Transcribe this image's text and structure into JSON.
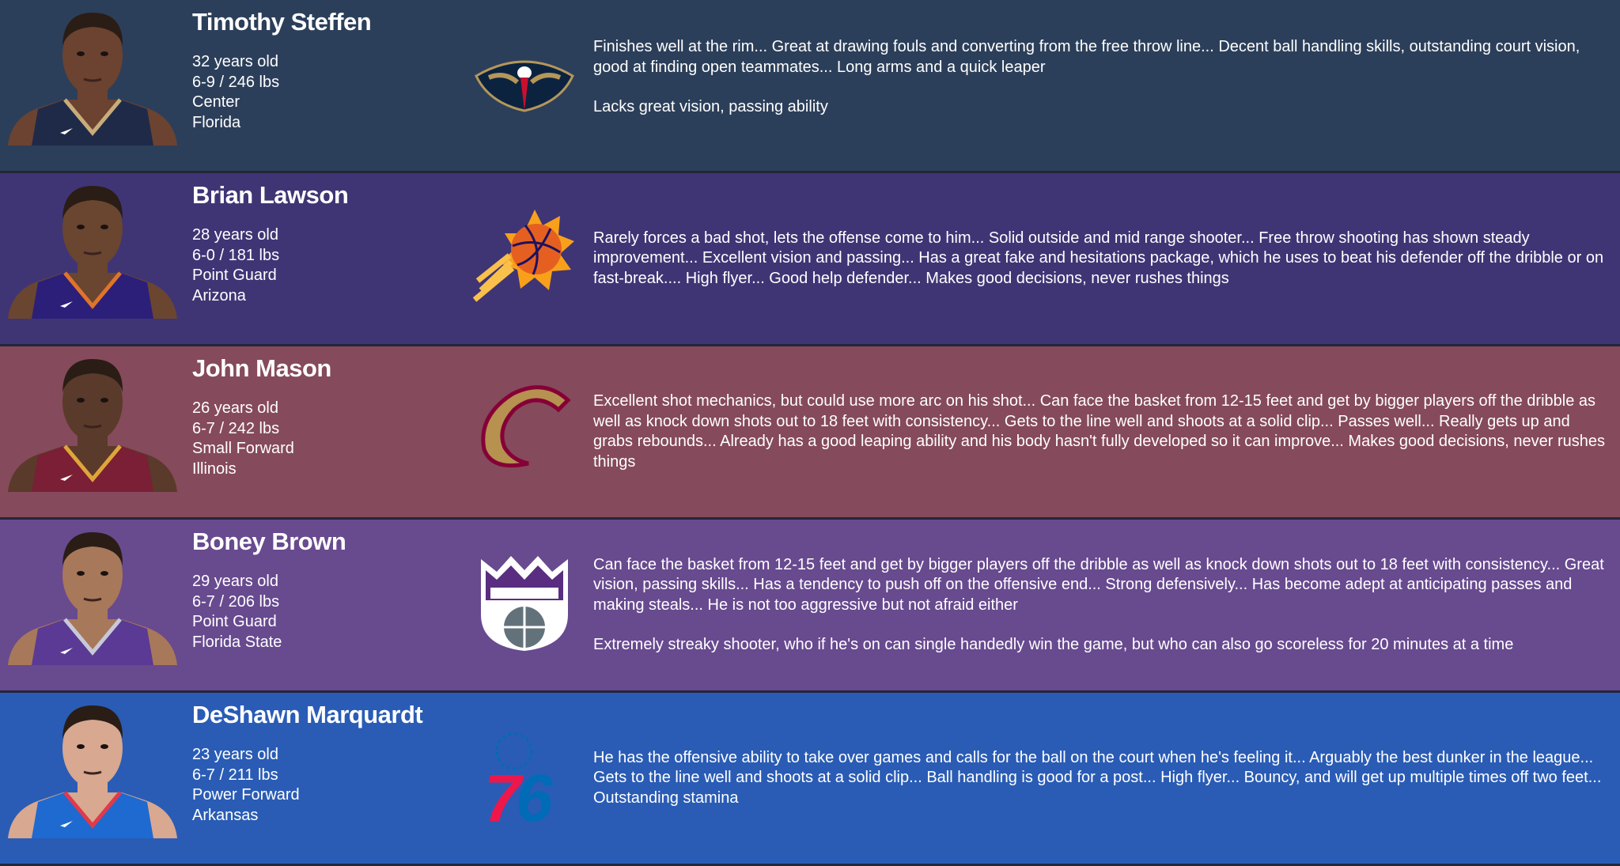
{
  "players": [
    {
      "name": "Timothy Steffen",
      "age": "32 years old",
      "size": "6-9 / 246 lbs",
      "position": "Center",
      "college": "Florida",
      "team_logo": "pelicans-logo",
      "bg": "#2c3f5a",
      "jersey": "#1f2a48",
      "trim": "#c8ac7a",
      "skin": "#6b4330",
      "strengths": "Finishes well at the rim... Great at drawing fouls and converting from the free throw line... Decent ball handling skills, outstanding court vision, good at finding open teammates... Long arms and a quick leaper",
      "weaknesses": "Lacks great vision, passing ability"
    },
    {
      "name": "Brian Lawson",
      "age": "28 years old",
      "size": "6-0 / 181 lbs",
      "position": "Point Guard",
      "college": "Arizona",
      "team_logo": "suns-logo",
      "bg": "#3f3575",
      "jersey": "#2b1f7a",
      "trim": "#e0742a",
      "skin": "#6a4530",
      "strengths": "Rarely forces a bad shot, lets the offense come to him... Solid outside and mid range shooter... Free throw shooting has shown steady improvement... Excellent vision and passing... Has a great fake and hesitations package, which he uses to beat his defender off the dribble or on fast-break.... High flyer... Good help defender... Makes good decisions, never rushes things",
      "weaknesses": ""
    },
    {
      "name": "John Mason",
      "age": "26 years old",
      "size": "6-7 / 242 lbs",
      "position": "Small Forward",
      "college": "Illinois",
      "team_logo": "cavaliers-logo",
      "bg": "#854a5b",
      "jersey": "#7a1f35",
      "trim": "#e0a53a",
      "skin": "#5a3a2a",
      "strengths": "Excellent shot mechanics, but could use more arc on his shot... Can face the basket from 12-15 feet and get by bigger players off the dribble as well as knock down shots out to 18 feet with consistency... Gets to the line well and shoots at a solid clip... Passes well... Really gets up and grabs rebounds... Already has a good leaping ability and his body hasn't fully developed so it can improve... Makes good decisions, never rushes things",
      "weaknesses": ""
    },
    {
      "name": "Boney Brown",
      "age": "29 years old",
      "size": "6-7 / 206 lbs",
      "position": "Point Guard",
      "college": "Florida State",
      "team_logo": "kings-logo",
      "bg": "#684a8f",
      "jersey": "#5a3a94",
      "trim": "#c8c8d8",
      "skin": "#a8785a",
      "strengths": "Can face the basket from 12-15 feet and get by bigger players off the dribble as well as knock down shots out to 18 feet with consistency... Great vision, passing skills... Has a tendency to push off on the offensive end... Strong defensively... Has become adept at anticipating passes and making steals... He is not too aggressive but not afraid either",
      "weaknesses": "Extremely streaky shooter, who if he's on can single handedly win the game, but who can also go scoreless for 20 minutes at a time"
    },
    {
      "name": "DeShawn Marquardt",
      "age": "23 years old",
      "size": "6-7 / 211 lbs",
      "position": "Power Forward",
      "college": "Arkansas",
      "team_logo": "76ers-logo",
      "bg": "#2a5cb5",
      "jersey": "#1e6ad0",
      "trim": "#e03a4a",
      "skin": "#d8a890",
      "strengths": "He has the offensive ability to take over games and calls for the ball on the court when he's feeling it... Arguably the best dunker in the league... Gets to the line well and shoots at a solid clip... Ball handling is good for a post... High flyer... Bouncy, and will get up multiple times off two feet... Outstanding stamina",
      "weaknesses": ""
    }
  ]
}
